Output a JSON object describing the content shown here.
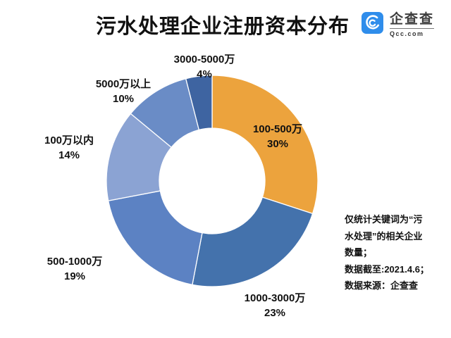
{
  "header": {
    "title": "污水处理企业注册资本分布",
    "logo": {
      "name": "企查查",
      "domain": "Qcc.com",
      "icon_color": "#2F8DEB"
    }
  },
  "chart_data": {
    "type": "pie",
    "subtype": "donut",
    "title": "污水处理企业注册资本分布",
    "unit": "percent",
    "start_angle_deg": 0,
    "direction": "clockwise",
    "hole_ratio": 0.5,
    "legend_position": "none",
    "segments": [
      {
        "label": "100-500万",
        "value": 30,
        "pct_label": "30%",
        "color": "#ECA33D"
      },
      {
        "label": "1000-3000万",
        "value": 23,
        "pct_label": "23%",
        "color": "#4472AC"
      },
      {
        "label": "500-1000万",
        "value": 19,
        "pct_label": "19%",
        "color": "#5C82C3"
      },
      {
        "label": "100万以内",
        "value": 14,
        "pct_label": "14%",
        "color": "#8BA3D3"
      },
      {
        "label": "5000万以上",
        "value": 10,
        "pct_label": "10%",
        "color": "#6A8CC6"
      },
      {
        "label": "3000-5000万",
        "value": 4,
        "pct_label": "4%",
        "color": "#3E64A1"
      }
    ]
  },
  "footnote": {
    "lines": [
      "仅统计关键词为“污",
      "水处理”的相关企业",
      "数量；",
      "数据截至:2021.4.6；",
      "数据来源：企查查"
    ]
  }
}
